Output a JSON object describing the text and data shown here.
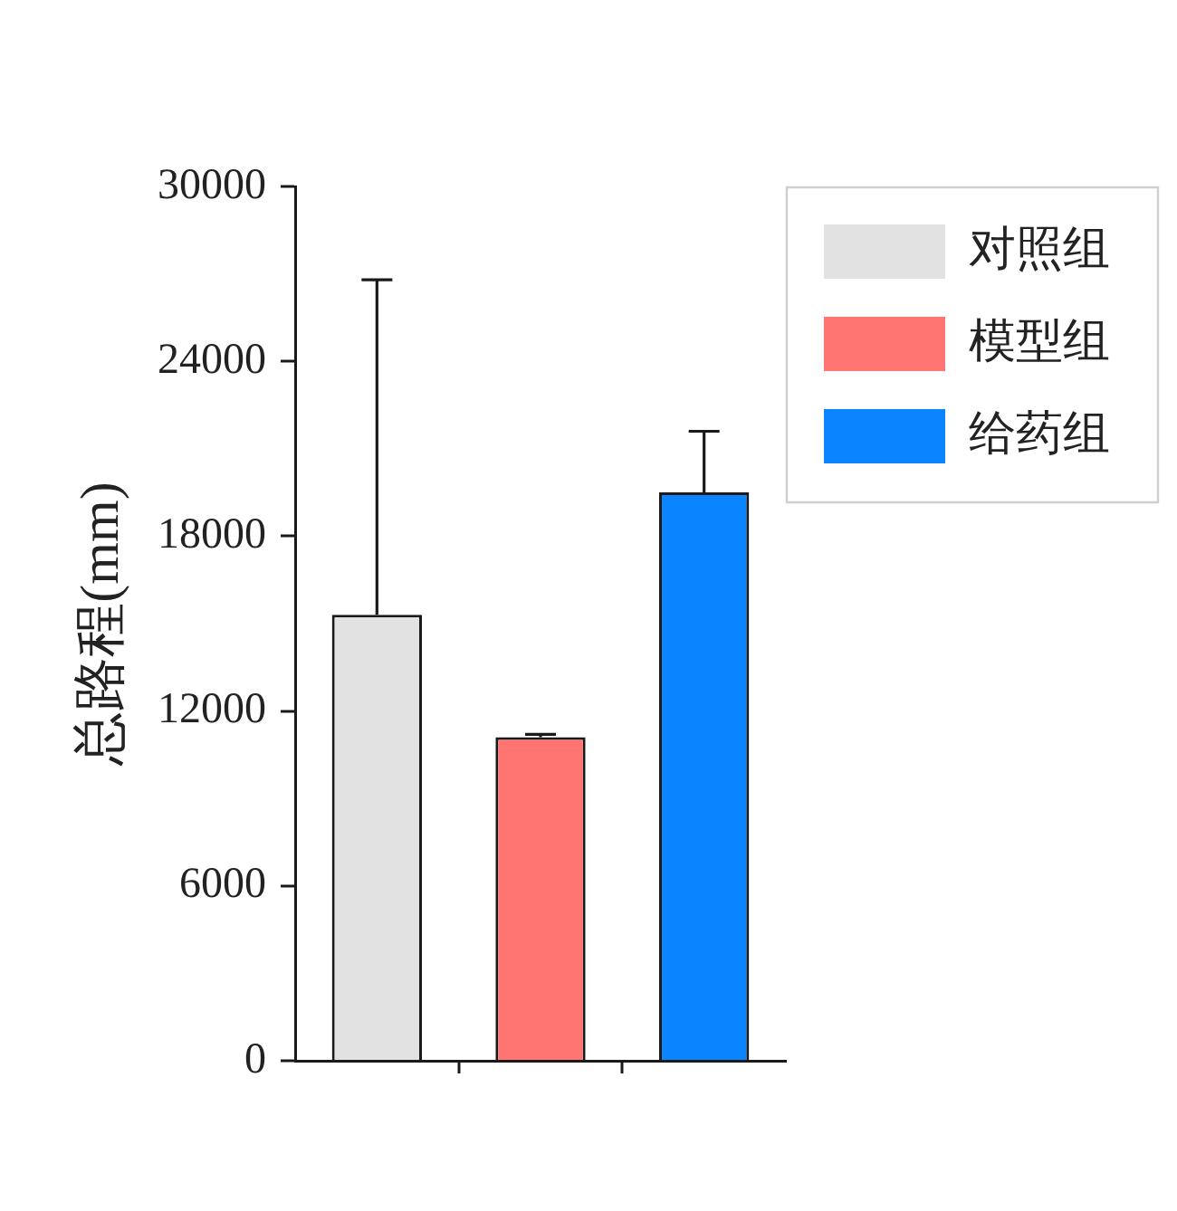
{
  "chart_data": {
    "type": "bar",
    "ylabel": "总路程(mm)",
    "categories": [
      null,
      null,
      null
    ],
    "series": [
      {
        "name": "对照组",
        "color": "#e1e2e1",
        "values": [
          15300,
          null,
          null
        ],
        "errors": [
          [
            15300,
            26800
          ],
          null,
          null
        ]
      },
      {
        "name": "模型组",
        "color": "#ff7572",
        "values": [
          null,
          11100,
          null
        ],
        "errors": [
          null,
          [
            11100,
            11200
          ],
          null
        ]
      },
      {
        "name": "给药组",
        "color": "#0a84ff",
        "values": [
          null,
          null,
          19500
        ],
        "errors": [
          null,
          null,
          [
            19500,
            21600
          ]
        ]
      }
    ],
    "ylim": [
      0,
      30000
    ],
    "yticks": [
      0,
      6000,
      12000,
      18000,
      24000,
      30000
    ],
    "legend": "top right",
    "tick_labels": "y"
  }
}
